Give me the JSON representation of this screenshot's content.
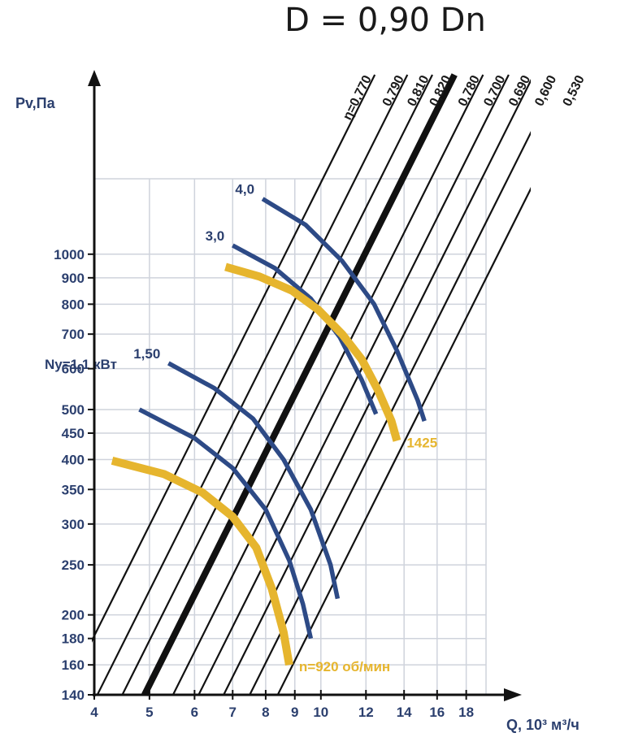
{
  "chart_data": {
    "type": "line",
    "title": "D = 0,90 Dn",
    "ylabel": "Pv,Па",
    "xlabel": "Q, 10³ м³/ч",
    "x_ticks": [
      "4",
      "5",
      "6",
      "7",
      "8",
      "9",
      "10",
      "12",
      "14",
      "16",
      "18"
    ],
    "y_ticks": [
      "140",
      "160",
      "180",
      "200",
      "250",
      "300",
      "350",
      "400",
      "450",
      "500",
      "600",
      "700",
      "800",
      "900",
      "1000"
    ],
    "efficiency_lines": [
      {
        "label": "η=0,770",
        "bold": false
      },
      {
        "label": "0,790",
        "bold": false
      },
      {
        "label": "0,810",
        "bold": false
      },
      {
        "label": "0,820",
        "bold": true
      },
      {
        "label": "0,780",
        "bold": false
      },
      {
        "label": "0,700",
        "bold": false
      },
      {
        "label": "0,690",
        "bold": false
      },
      {
        "label": "0,600",
        "bold": false
      },
      {
        "label": "0,530",
        "bold": false
      }
    ],
    "power_curves": [
      {
        "label": "Ny=1,1 кВт",
        "points": [
          [
            4.8,
            500
          ],
          [
            6,
            440
          ],
          [
            7,
            385
          ],
          [
            8,
            320
          ],
          [
            8.8,
            255
          ],
          [
            9.3,
            210
          ],
          [
            9.6,
            180
          ]
        ]
      },
      {
        "label": "1,50",
        "points": [
          [
            5.4,
            615
          ],
          [
            6.5,
            550
          ],
          [
            7.6,
            480
          ],
          [
            8.6,
            400
          ],
          [
            9.6,
            320
          ],
          [
            10.4,
            250
          ],
          [
            10.7,
            215
          ]
        ]
      },
      {
        "label": "3,0",
        "points": [
          [
            7,
            1040
          ],
          [
            8.3,
            940
          ],
          [
            9.6,
            820
          ],
          [
            10.8,
            690
          ],
          [
            11.8,
            570
          ],
          [
            12.5,
            490
          ]
        ]
      },
      {
        "label": "4,0",
        "points": [
          [
            7.9,
            1280
          ],
          [
            9.4,
            1140
          ],
          [
            10.9,
            970
          ],
          [
            12.4,
            800
          ],
          [
            13.6,
            650
          ],
          [
            14.8,
            520
          ],
          [
            15.2,
            475
          ]
        ]
      }
    ],
    "speed_curves": [
      {
        "label": "n=920 об/мин",
        "points": [
          [
            4.3,
            398
          ],
          [
            5.3,
            375
          ],
          [
            6.2,
            345
          ],
          [
            7,
            310
          ],
          [
            7.7,
            270
          ],
          [
            8.2,
            225
          ],
          [
            8.6,
            185
          ],
          [
            8.8,
            160
          ]
        ]
      },
      {
        "label": "1425",
        "points": [
          [
            6.8,
            945
          ],
          [
            7.8,
            905
          ],
          [
            8.9,
            850
          ],
          [
            9.9,
            780
          ],
          [
            10.9,
            700
          ],
          [
            11.8,
            625
          ],
          [
            12.6,
            545
          ],
          [
            13.3,
            475
          ],
          [
            13.6,
            435
          ]
        ]
      }
    ]
  }
}
